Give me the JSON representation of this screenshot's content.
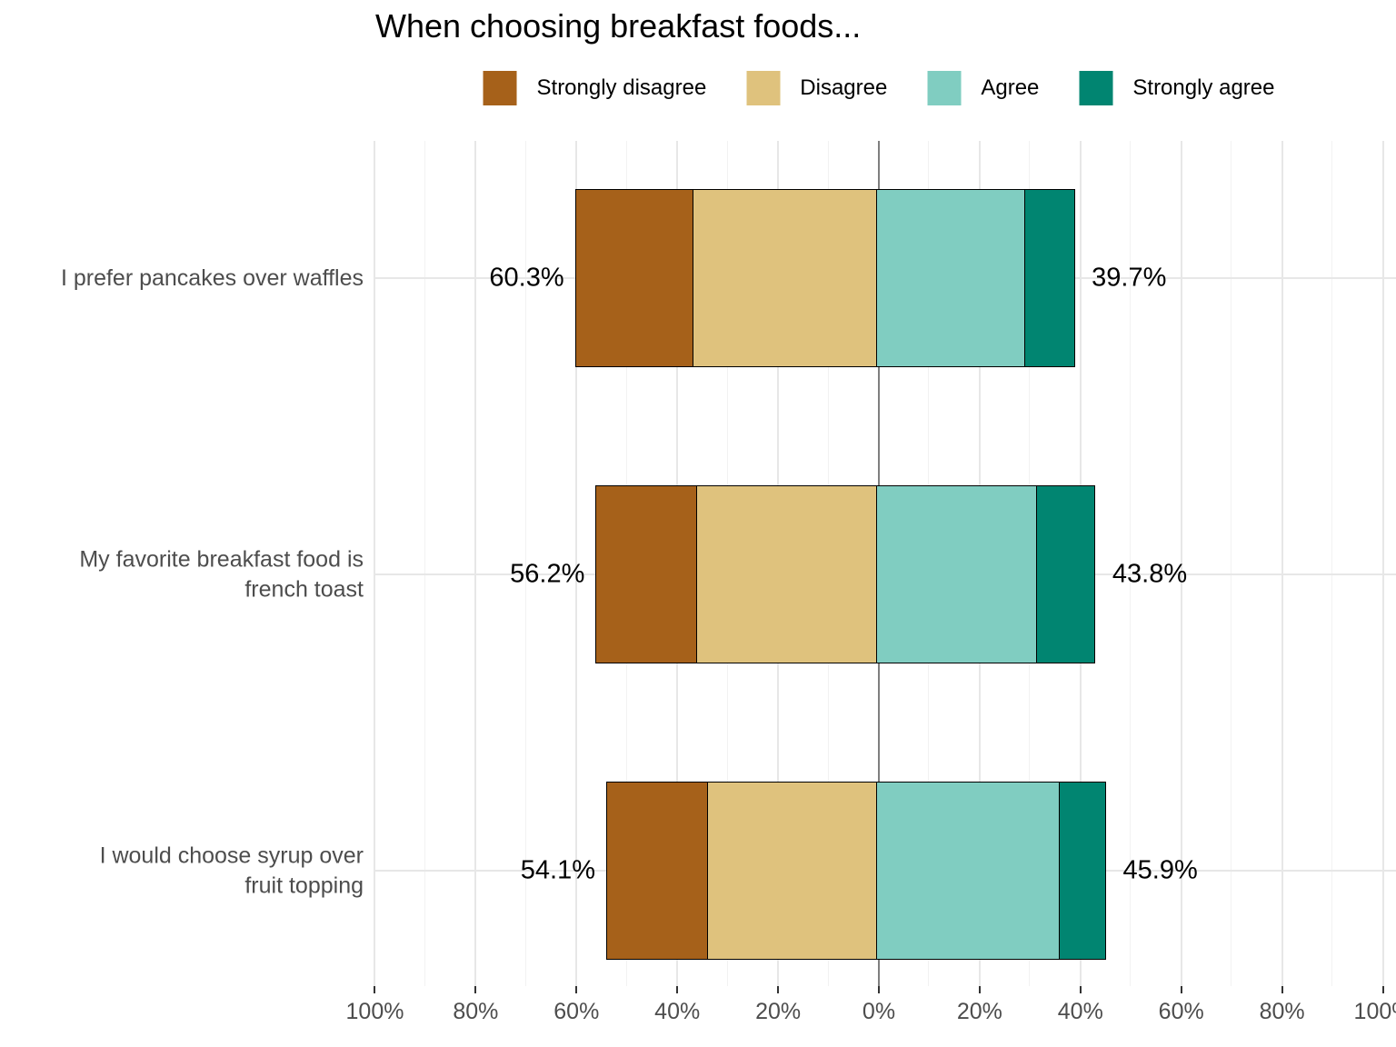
{
  "chart_data": {
    "type": "bar",
    "subtype": "diverging_stacked_likert",
    "title": "When choosing breakfast foods...",
    "legend_position": "top",
    "grid": true,
    "orientation": "horizontal",
    "categories": [
      "I prefer pancakes over waffles",
      "My favorite breakfast food is\nfrench toast",
      "I would choose syrup over\nfruit topping"
    ],
    "series": [
      {
        "name": "Strongly disagree",
        "color": "#a6611a",
        "values": [
          23.6,
          20.2,
          20.2
        ]
      },
      {
        "name": "Disagree",
        "color": "#dfc27d",
        "values": [
          36.7,
          36.0,
          33.9
        ]
      },
      {
        "name": "Agree",
        "color": "#80cdc1",
        "values": [
          29.7,
          32.1,
          36.5
        ]
      },
      {
        "name": "Strongly agree",
        "color": "#018571",
        "values": [
          10.0,
          11.7,
          9.4
        ]
      }
    ],
    "totals": {
      "negative": [
        60.3,
        56.2,
        54.1
      ],
      "positive": [
        39.7,
        43.8,
        45.9
      ],
      "negative_labels": [
        "60.3%",
        "56.2%",
        "54.1%"
      ],
      "positive_labels": [
        "39.7%",
        "43.8%",
        "45.9%"
      ]
    },
    "x_axis": {
      "unit": "%",
      "tick_values": [
        -100,
        -80,
        -60,
        -40,
        -20,
        0,
        20,
        40,
        60,
        80,
        100
      ],
      "tick_labels": [
        "100%",
        "80%",
        "60%",
        "40%",
        "20%",
        "0%",
        "20%",
        "40%",
        "60%",
        "80%",
        "100%"
      ],
      "minor_step": 10
    },
    "style": {
      "bar_outline_color": "#000000",
      "zero_line_color": "#7f7f7f",
      "axis_text_color": "#4d4d4d",
      "grid_major_color": "#e7e7e7",
      "grid_minor_color": "#f2f2f2"
    }
  }
}
